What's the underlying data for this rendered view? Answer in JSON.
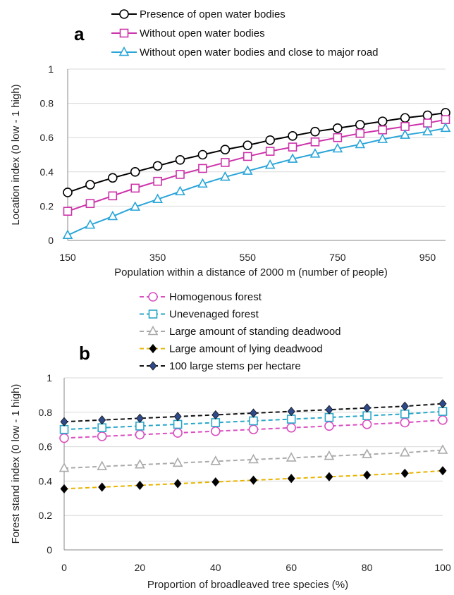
{
  "chart_data": [
    {
      "type": "line",
      "panel_label": "a",
      "xlabel": "Population within a distance of 2000 m (number of people)",
      "ylabel": "Location index (0 low - 1 high)",
      "xlim": [
        150,
        990
      ],
      "ylim": [
        0,
        1
      ],
      "xticks": [
        "150",
        "350",
        "550",
        "750",
        "950"
      ],
      "yticks": [
        "0",
        "0.2",
        "0.4",
        "0.6",
        "0.8",
        "1"
      ],
      "grid": "horizontal",
      "legend_position": "top",
      "x": [
        150,
        200,
        250,
        300,
        350,
        400,
        450,
        500,
        550,
        600,
        650,
        700,
        750,
        800,
        850,
        900,
        950,
        990
      ],
      "series": [
        {
          "name": "Presence of open water bodies",
          "color": "#000000",
          "marker": "circle",
          "line": "solid",
          "values": [
            0.28,
            0.325,
            0.365,
            0.4,
            0.435,
            0.47,
            0.5,
            0.53,
            0.555,
            0.585,
            0.61,
            0.635,
            0.655,
            0.675,
            0.695,
            0.715,
            0.73,
            0.745
          ]
        },
        {
          "name": "Without open water bodies",
          "color": "#cc33aa",
          "marker": "square",
          "line": "solid",
          "values": [
            0.17,
            0.215,
            0.26,
            0.305,
            0.345,
            0.385,
            0.42,
            0.455,
            0.49,
            0.52,
            0.545,
            0.575,
            0.6,
            0.625,
            0.645,
            0.665,
            0.685,
            0.705
          ]
        },
        {
          "name": "Without open water bodies and close to major road",
          "color": "#2aa5d8",
          "marker": "triangle",
          "line": "solid",
          "values": [
            0.03,
            0.09,
            0.14,
            0.195,
            0.24,
            0.285,
            0.33,
            0.37,
            0.405,
            0.44,
            0.475,
            0.505,
            0.535,
            0.56,
            0.59,
            0.615,
            0.635,
            0.655
          ]
        }
      ]
    },
    {
      "type": "line",
      "panel_label": "b",
      "xlabel": "Proportion of broadleaved tree species (%)",
      "ylabel": "Forest stand index (0 low - 1 high)",
      "xlim": [
        0,
        100
      ],
      "ylim": [
        0,
        1
      ],
      "xticks": [
        "0",
        "20",
        "40",
        "60",
        "80",
        "100"
      ],
      "yticks": [
        "0",
        "0.2",
        "0.4",
        "0.6",
        "0.8",
        "1"
      ],
      "grid": "horizontal",
      "legend_position": "top",
      "x": [
        0,
        10,
        20,
        30,
        40,
        50,
        60,
        70,
        80,
        90,
        100
      ],
      "series": [
        {
          "name": "Homogenous forest",
          "color": "#d94fc0",
          "marker": "circle",
          "line": "dashed",
          "values": [
            0.65,
            0.66,
            0.67,
            0.68,
            0.69,
            0.7,
            0.71,
            0.72,
            0.73,
            0.74,
            0.755
          ]
        },
        {
          "name": "Unevenaged forest",
          "color": "#29a7c9",
          "marker": "square",
          "line": "dashed",
          "values": [
            0.7,
            0.71,
            0.72,
            0.73,
            0.74,
            0.75,
            0.76,
            0.77,
            0.78,
            0.79,
            0.805
          ]
        },
        {
          "name": "Large amount of standing deadwood",
          "color": "#aaaaaa",
          "marker": "triangle",
          "line": "dashed",
          "values": [
            0.475,
            0.485,
            0.495,
            0.505,
            0.515,
            0.525,
            0.535,
            0.545,
            0.555,
            0.565,
            0.58
          ]
        },
        {
          "name": "Large amount of lying deadwood",
          "color": "#e8b400",
          "marker": "diamond-filled",
          "marker_color": "#000000",
          "line": "dashed",
          "values": [
            0.355,
            0.365,
            0.375,
            0.385,
            0.395,
            0.405,
            0.415,
            0.425,
            0.435,
            0.445,
            0.46
          ]
        },
        {
          "name": "100 large stems per hectare",
          "color": "#111111",
          "marker": "diamond-filled",
          "marker_color": "#2e4a8a",
          "line": "dashed",
          "values": [
            0.745,
            0.755,
            0.765,
            0.775,
            0.785,
            0.795,
            0.805,
            0.815,
            0.825,
            0.835,
            0.85
          ]
        }
      ]
    }
  ]
}
